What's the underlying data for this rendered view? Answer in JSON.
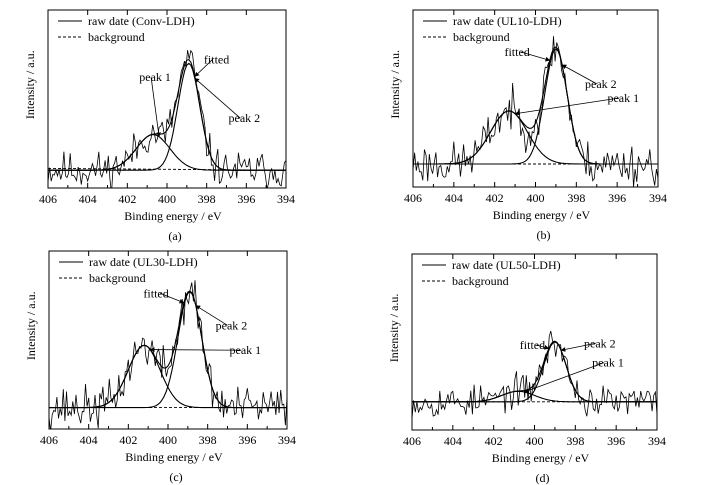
{
  "chart_data": [
    {
      "type": "line",
      "caption": "(a)",
      "xlabel": "Binding energy / eV",
      "ylabel": "Intensity / a.u.",
      "xlim": [
        406,
        394
      ],
      "x_reversed": true,
      "xticks": [
        406,
        404,
        402,
        400,
        398,
        396,
        394
      ],
      "ylim": [
        0,
        1
      ],
      "legend": {
        "placement": "top-left",
        "entries": [
          "raw date (Conv-LDH)",
          "background"
        ]
      },
      "annotations": [
        {
          "text": "peak 1",
          "x": 400.6,
          "y": 0.6
        },
        {
          "text": "fitted",
          "x": 397.5,
          "y": 0.7
        },
        {
          "text": "peak 2",
          "x": 396.1,
          "y": 0.37
        }
      ],
      "series": [
        {
          "name": "raw date (Conv-LDH)",
          "style": "noisy",
          "baseline": 0.1,
          "noise": 0.08,
          "seed": 11,
          "peaks": [
            [
              400.7,
              0.2,
              0.85
            ],
            [
              398.9,
              0.6,
              0.55
            ]
          ]
        },
        {
          "name": "background",
          "style": "dashed",
          "values": [
            [
              406,
              0.11
            ],
            [
              394,
              0.1
            ]
          ]
        },
        {
          "label": "fitted",
          "style": "smooth",
          "baseline": 0.1,
          "peaks": [
            [
              400.7,
              0.2,
              0.85
            ],
            [
              398.9,
              0.6,
              0.55
            ]
          ]
        },
        {
          "label": "peak 1",
          "style": "smooth",
          "baseline": 0.1,
          "peaks": [
            [
              400.7,
              0.2,
              0.85
            ]
          ]
        },
        {
          "label": "peak 2",
          "style": "smooth",
          "baseline": 0.1,
          "peaks": [
            [
              398.9,
              0.6,
              0.55
            ]
          ]
        }
      ]
    },
    {
      "type": "line",
      "caption": "(b)",
      "xlabel": "Binding energy / eV",
      "ylabel": "Intensity / a.u.",
      "xlim": [
        406,
        394
      ],
      "x_reversed": true,
      "xticks": [
        406,
        404,
        402,
        400,
        398,
        396,
        394
      ],
      "ylim": [
        0,
        1
      ],
      "legend": {
        "placement": "top-left",
        "entries": [
          "raw date (UL10-LDH)",
          "background"
        ]
      },
      "annotations": [
        {
          "text": "fitted",
          "x": 400.9,
          "y": 0.74
        },
        {
          "text": "peak 2",
          "x": 396.8,
          "y": 0.56
        },
        {
          "text": "peak 1",
          "x": 395.7,
          "y": 0.48
        }
      ],
      "series": [
        {
          "name": "raw date (UL10-LDH)",
          "style": "noisy",
          "baseline": 0.13,
          "noise": 0.09,
          "seed": 23,
          "peaks": [
            [
              401.3,
              0.3,
              0.9
            ],
            [
              399.0,
              0.65,
              0.55
            ]
          ]
        },
        {
          "name": "background",
          "style": "dashed",
          "values": [
            [
              406,
              0.13
            ],
            [
              394,
              0.13
            ]
          ]
        },
        {
          "label": "fitted",
          "style": "smooth",
          "baseline": 0.13,
          "peaks": [
            [
              401.3,
              0.3,
              0.9
            ],
            [
              399.0,
              0.65,
              0.55
            ]
          ]
        },
        {
          "label": "peak 1",
          "style": "smooth",
          "baseline": 0.13,
          "peaks": [
            [
              401.3,
              0.3,
              0.9
            ]
          ]
        },
        {
          "label": "peak 2",
          "style": "smooth",
          "baseline": 0.13,
          "peaks": [
            [
              399.0,
              0.65,
              0.55
            ]
          ]
        }
      ]
    },
    {
      "type": "line",
      "caption": "(c)",
      "xlabel": "Binding energy / eV",
      "ylabel": "Intensity / a.u.",
      "xlim": [
        406,
        394
      ],
      "x_reversed": true,
      "xticks": [
        406,
        404,
        402,
        400,
        398,
        396,
        394
      ],
      "ylim": [
        0,
        1
      ],
      "legend": {
        "placement": "top-left",
        "entries": [
          "raw date (UL30-LDH)",
          "background"
        ]
      },
      "annotations": [
        {
          "text": "fitted",
          "x": 400.6,
          "y": 0.74
        },
        {
          "text": "peak 2",
          "x": 396.8,
          "y": 0.56
        },
        {
          "text": "peak 1",
          "x": 396.1,
          "y": 0.42
        }
      ],
      "series": [
        {
          "name": "raw date (UL30-LDH)",
          "style": "noisy",
          "baseline": 0.12,
          "noise": 0.09,
          "seed": 37,
          "peaks": [
            [
              401.2,
              0.35,
              0.8
            ],
            [
              398.9,
              0.65,
              0.6
            ]
          ]
        },
        {
          "name": "background",
          "style": "dashed",
          "values": [
            [
              406,
              0.12
            ],
            [
              394,
              0.12
            ]
          ]
        },
        {
          "label": "fitted",
          "style": "smooth",
          "baseline": 0.12,
          "peaks": [
            [
              401.2,
              0.35,
              0.8
            ],
            [
              398.9,
              0.65,
              0.6
            ]
          ]
        },
        {
          "label": "peak 1",
          "style": "smooth",
          "baseline": 0.12,
          "peaks": [
            [
              401.2,
              0.35,
              0.8
            ]
          ]
        },
        {
          "label": "peak 2",
          "style": "smooth",
          "baseline": 0.12,
          "peaks": [
            [
              398.9,
              0.65,
              0.6
            ]
          ]
        }
      ]
    },
    {
      "type": "line",
      "caption": "(d)",
      "xlabel": "Binding energy / eV",
      "ylabel": "Intensity / a.u.",
      "xlim": [
        406,
        394
      ],
      "x_reversed": true,
      "xticks": [
        406,
        404,
        402,
        400,
        398,
        396,
        394
      ],
      "ylim": [
        0,
        1
      ],
      "legend": {
        "placement": "top-left",
        "entries": [
          "raw date (UL50-LDH)",
          "background"
        ]
      },
      "annotations": [
        {
          "text": "fitted",
          "x": 400.1,
          "y": 0.46
        },
        {
          "text": "peak 2",
          "x": 396.8,
          "y": 0.47
        },
        {
          "text": "peak 1",
          "x": 396.4,
          "y": 0.36
        }
      ],
      "series": [
        {
          "name": "raw date (UL50-LDH)",
          "style": "noisy",
          "baseline": 0.16,
          "noise": 0.07,
          "seed": 53,
          "peaks": [
            [
              400.8,
              0.06,
              0.8
            ],
            [
              399.0,
              0.34,
              0.55
            ]
          ]
        },
        {
          "name": "background",
          "style": "dashed",
          "values": [
            [
              406,
              0.16
            ],
            [
              394,
              0.16
            ]
          ]
        },
        {
          "label": "fitted",
          "style": "smooth",
          "baseline": 0.16,
          "peaks": [
            [
              400.8,
              0.06,
              0.8
            ],
            [
              399.0,
              0.34,
              0.55
            ]
          ]
        },
        {
          "label": "peak 1",
          "style": "smooth",
          "baseline": 0.16,
          "peaks": [
            [
              400.8,
              0.06,
              0.8
            ]
          ]
        },
        {
          "label": "peak 2",
          "style": "smooth",
          "baseline": 0.16,
          "peaks": [
            [
              399.0,
              0.34,
              0.55
            ]
          ]
        }
      ]
    }
  ]
}
